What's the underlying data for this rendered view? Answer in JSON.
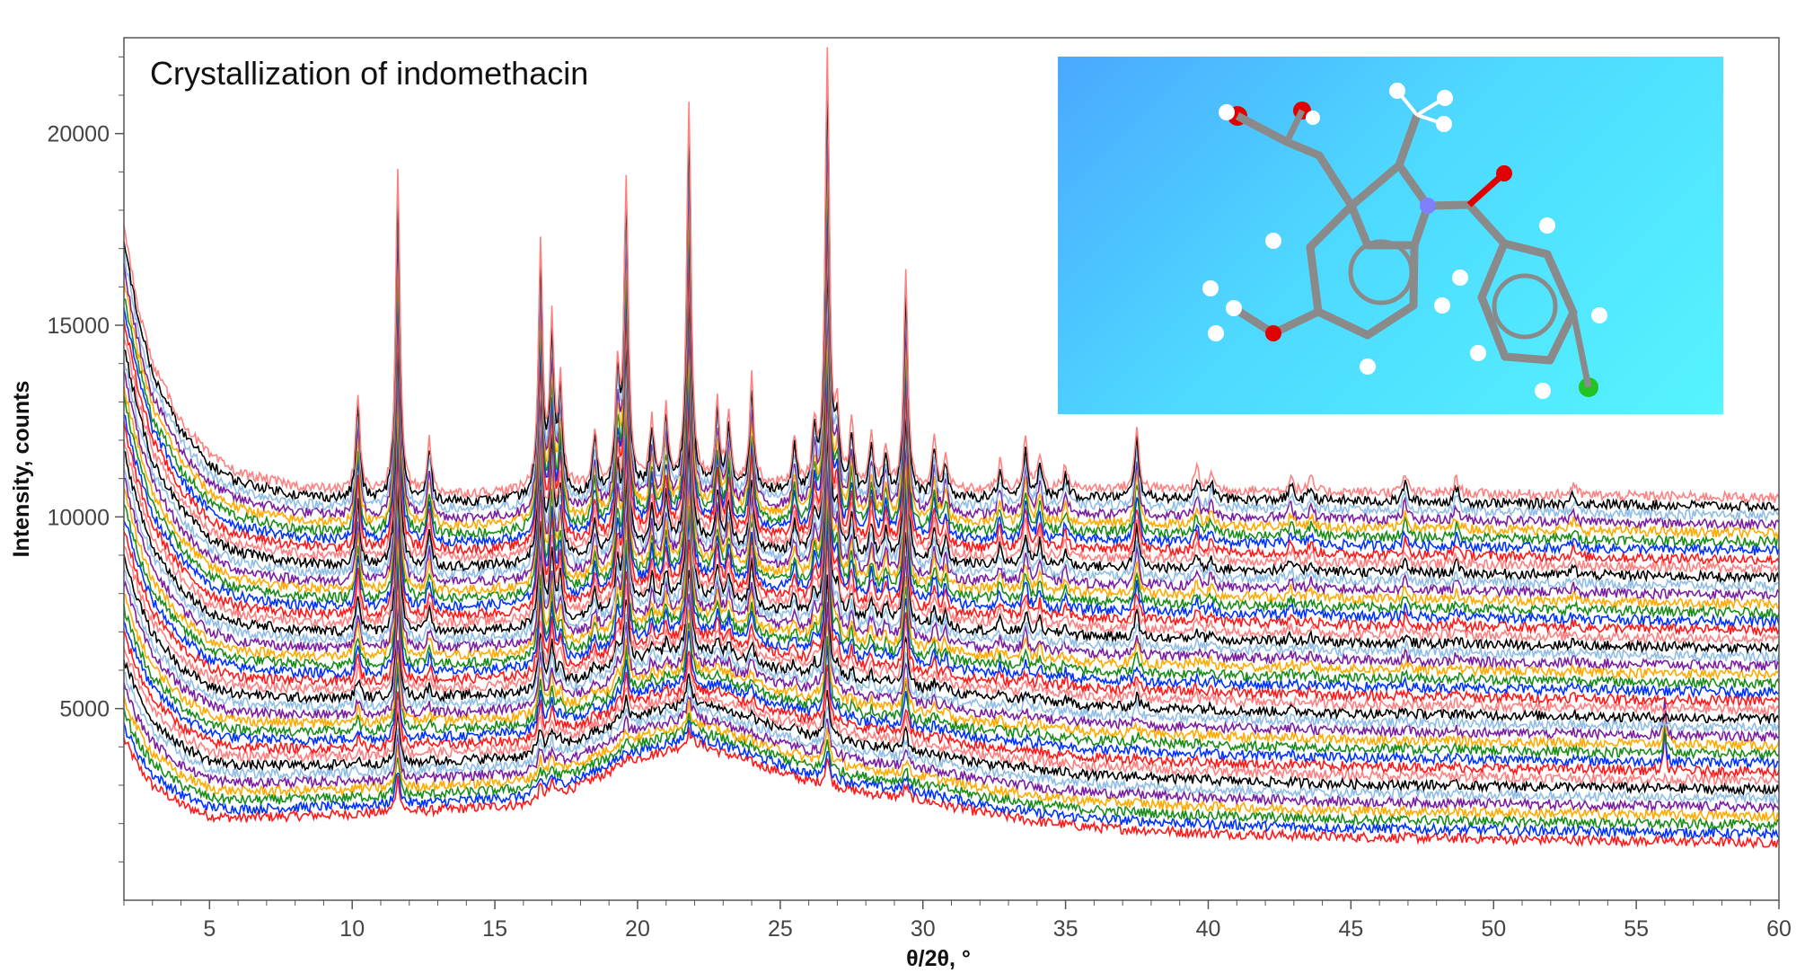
{
  "chart_data": {
    "type": "line",
    "title": "Crystallization of indomethacin",
    "xlabel": "θ/2θ, °",
    "ylabel": "Intensity, counts",
    "xlim": [
      2,
      60
    ],
    "ylim": [
      0,
      22500
    ],
    "x_ticks": [
      5,
      10,
      15,
      20,
      25,
      30,
      35,
      40,
      45,
      50,
      55,
      60
    ],
    "y_ticks": [
      5000,
      10000,
      15000,
      20000
    ],
    "grid": false,
    "legend": "none",
    "series_count": 40,
    "offset_per_series": 215,
    "bottom_series_baseline": {
      "x": [
        2,
        2.5,
        3,
        4,
        5,
        6,
        8,
        10,
        12,
        14,
        16,
        18,
        20,
        22,
        24,
        26,
        28,
        30,
        32,
        34,
        36,
        40,
        45,
        50,
        55,
        60
      ],
      "y": [
        4200,
        3500,
        3000,
        2500,
        2200,
        2150,
        2200,
        2250,
        2300,
        2400,
        2500,
        3000,
        3700,
        4100,
        3600,
        3100,
        2800,
        2600,
        2300,
        2050,
        1900,
        1750,
        1650,
        1600,
        1550,
        1500
      ]
    },
    "top_series_baseline": {
      "x": [
        2,
        2.5,
        3,
        4,
        5,
        6,
        8,
        10,
        12,
        14,
        16,
        18,
        20,
        22,
        24,
        26,
        28,
        30,
        32,
        34,
        36,
        40,
        45,
        50,
        55,
        60
      ],
      "y": [
        17500,
        15500,
        14000,
        12500,
        11600,
        11150,
        10800,
        10650,
        10600,
        10600,
        10650,
        10750,
        10850,
        10900,
        10850,
        10800,
        10750,
        10700,
        10700,
        10750,
        10750,
        10700,
        10650,
        10600,
        10550,
        10500
      ]
    },
    "peaks": [
      {
        "x": 10.2,
        "height_top": 2600,
        "height_bottom": 0
      },
      {
        "x": 11.6,
        "height_top": 8500,
        "height_bottom": 900
      },
      {
        "x": 12.7,
        "height_top": 1400,
        "height_bottom": 0
      },
      {
        "x": 16.6,
        "height_top": 6300,
        "height_bottom": 300
      },
      {
        "x": 17.0,
        "height_top": 4200,
        "height_bottom": 300
      },
      {
        "x": 17.3,
        "height_top": 2700,
        "height_bottom": 0
      },
      {
        "x": 18.5,
        "height_top": 1400,
        "height_bottom": 0
      },
      {
        "x": 19.3,
        "height_top": 2900,
        "height_bottom": 0
      },
      {
        "x": 19.6,
        "height_top": 7900,
        "height_bottom": 200
      },
      {
        "x": 20.5,
        "height_top": 1600,
        "height_bottom": 0
      },
      {
        "x": 21.0,
        "height_top": 1900,
        "height_bottom": 0
      },
      {
        "x": 21.8,
        "height_top": 9900,
        "height_bottom": 350
      },
      {
        "x": 22.8,
        "height_top": 2100,
        "height_bottom": 0
      },
      {
        "x": 23.2,
        "height_top": 1700,
        "height_bottom": 0
      },
      {
        "x": 24.0,
        "height_top": 2800,
        "height_bottom": 0
      },
      {
        "x": 25.5,
        "height_top": 1200,
        "height_bottom": 0
      },
      {
        "x": 26.2,
        "height_top": 1500,
        "height_bottom": 0
      },
      {
        "x": 26.65,
        "height_top": 11200,
        "height_bottom": 700
      },
      {
        "x": 27.0,
        "height_top": 1700,
        "height_bottom": 0
      },
      {
        "x": 27.5,
        "height_top": 1600,
        "height_bottom": 0
      },
      {
        "x": 28.2,
        "height_top": 1400,
        "height_bottom": 0
      },
      {
        "x": 28.7,
        "height_top": 1100,
        "height_bottom": 0
      },
      {
        "x": 29.4,
        "height_top": 5600,
        "height_bottom": 300
      },
      {
        "x": 30.4,
        "height_top": 1300,
        "height_bottom": 0
      },
      {
        "x": 30.8,
        "height_top": 900,
        "height_bottom": 0
      },
      {
        "x": 32.7,
        "height_top": 700,
        "height_bottom": 0
      },
      {
        "x": 33.6,
        "height_top": 1300,
        "height_bottom": 0
      },
      {
        "x": 34.1,
        "height_top": 900,
        "height_bottom": 0
      },
      {
        "x": 35.0,
        "height_top": 600,
        "height_bottom": 0
      },
      {
        "x": 37.5,
        "height_top": 1600,
        "height_bottom": 0
      },
      {
        "x": 39.6,
        "height_top": 600,
        "height_bottom": 0
      },
      {
        "x": 40.1,
        "height_top": 500,
        "height_bottom": 0
      },
      {
        "x": 42.9,
        "height_top": 400,
        "height_bottom": 0
      },
      {
        "x": 43.6,
        "height_top": 350,
        "height_bottom": 0
      },
      {
        "x": 46.9,
        "height_top": 500,
        "height_bottom": 0
      },
      {
        "x": 48.7,
        "height_top": 400,
        "height_bottom": 0
      },
      {
        "x": 52.8,
        "height_top": 300,
        "height_bottom": 0
      }
    ],
    "spike": {
      "x": 56.0,
      "height": 1000,
      "series": [
        8,
        9,
        10,
        11,
        12
      ]
    },
    "colors_bottom_to_top": [
      "#ff1a1a",
      "#0033ff",
      "#1a8c1a",
      "#ffaa00",
      "#7a1fa2",
      "#8fbde6",
      "#000000",
      "#ff8080"
    ]
  },
  "inset": {
    "description_icon": "indomethacin-molecule-structure",
    "colors": {
      "carbon": "#8a8a8a",
      "hydrogen": "#ffffff",
      "oxygen": "#e00000",
      "nitrogen": "#8080ff",
      "chlorine": "#22c322"
    }
  }
}
